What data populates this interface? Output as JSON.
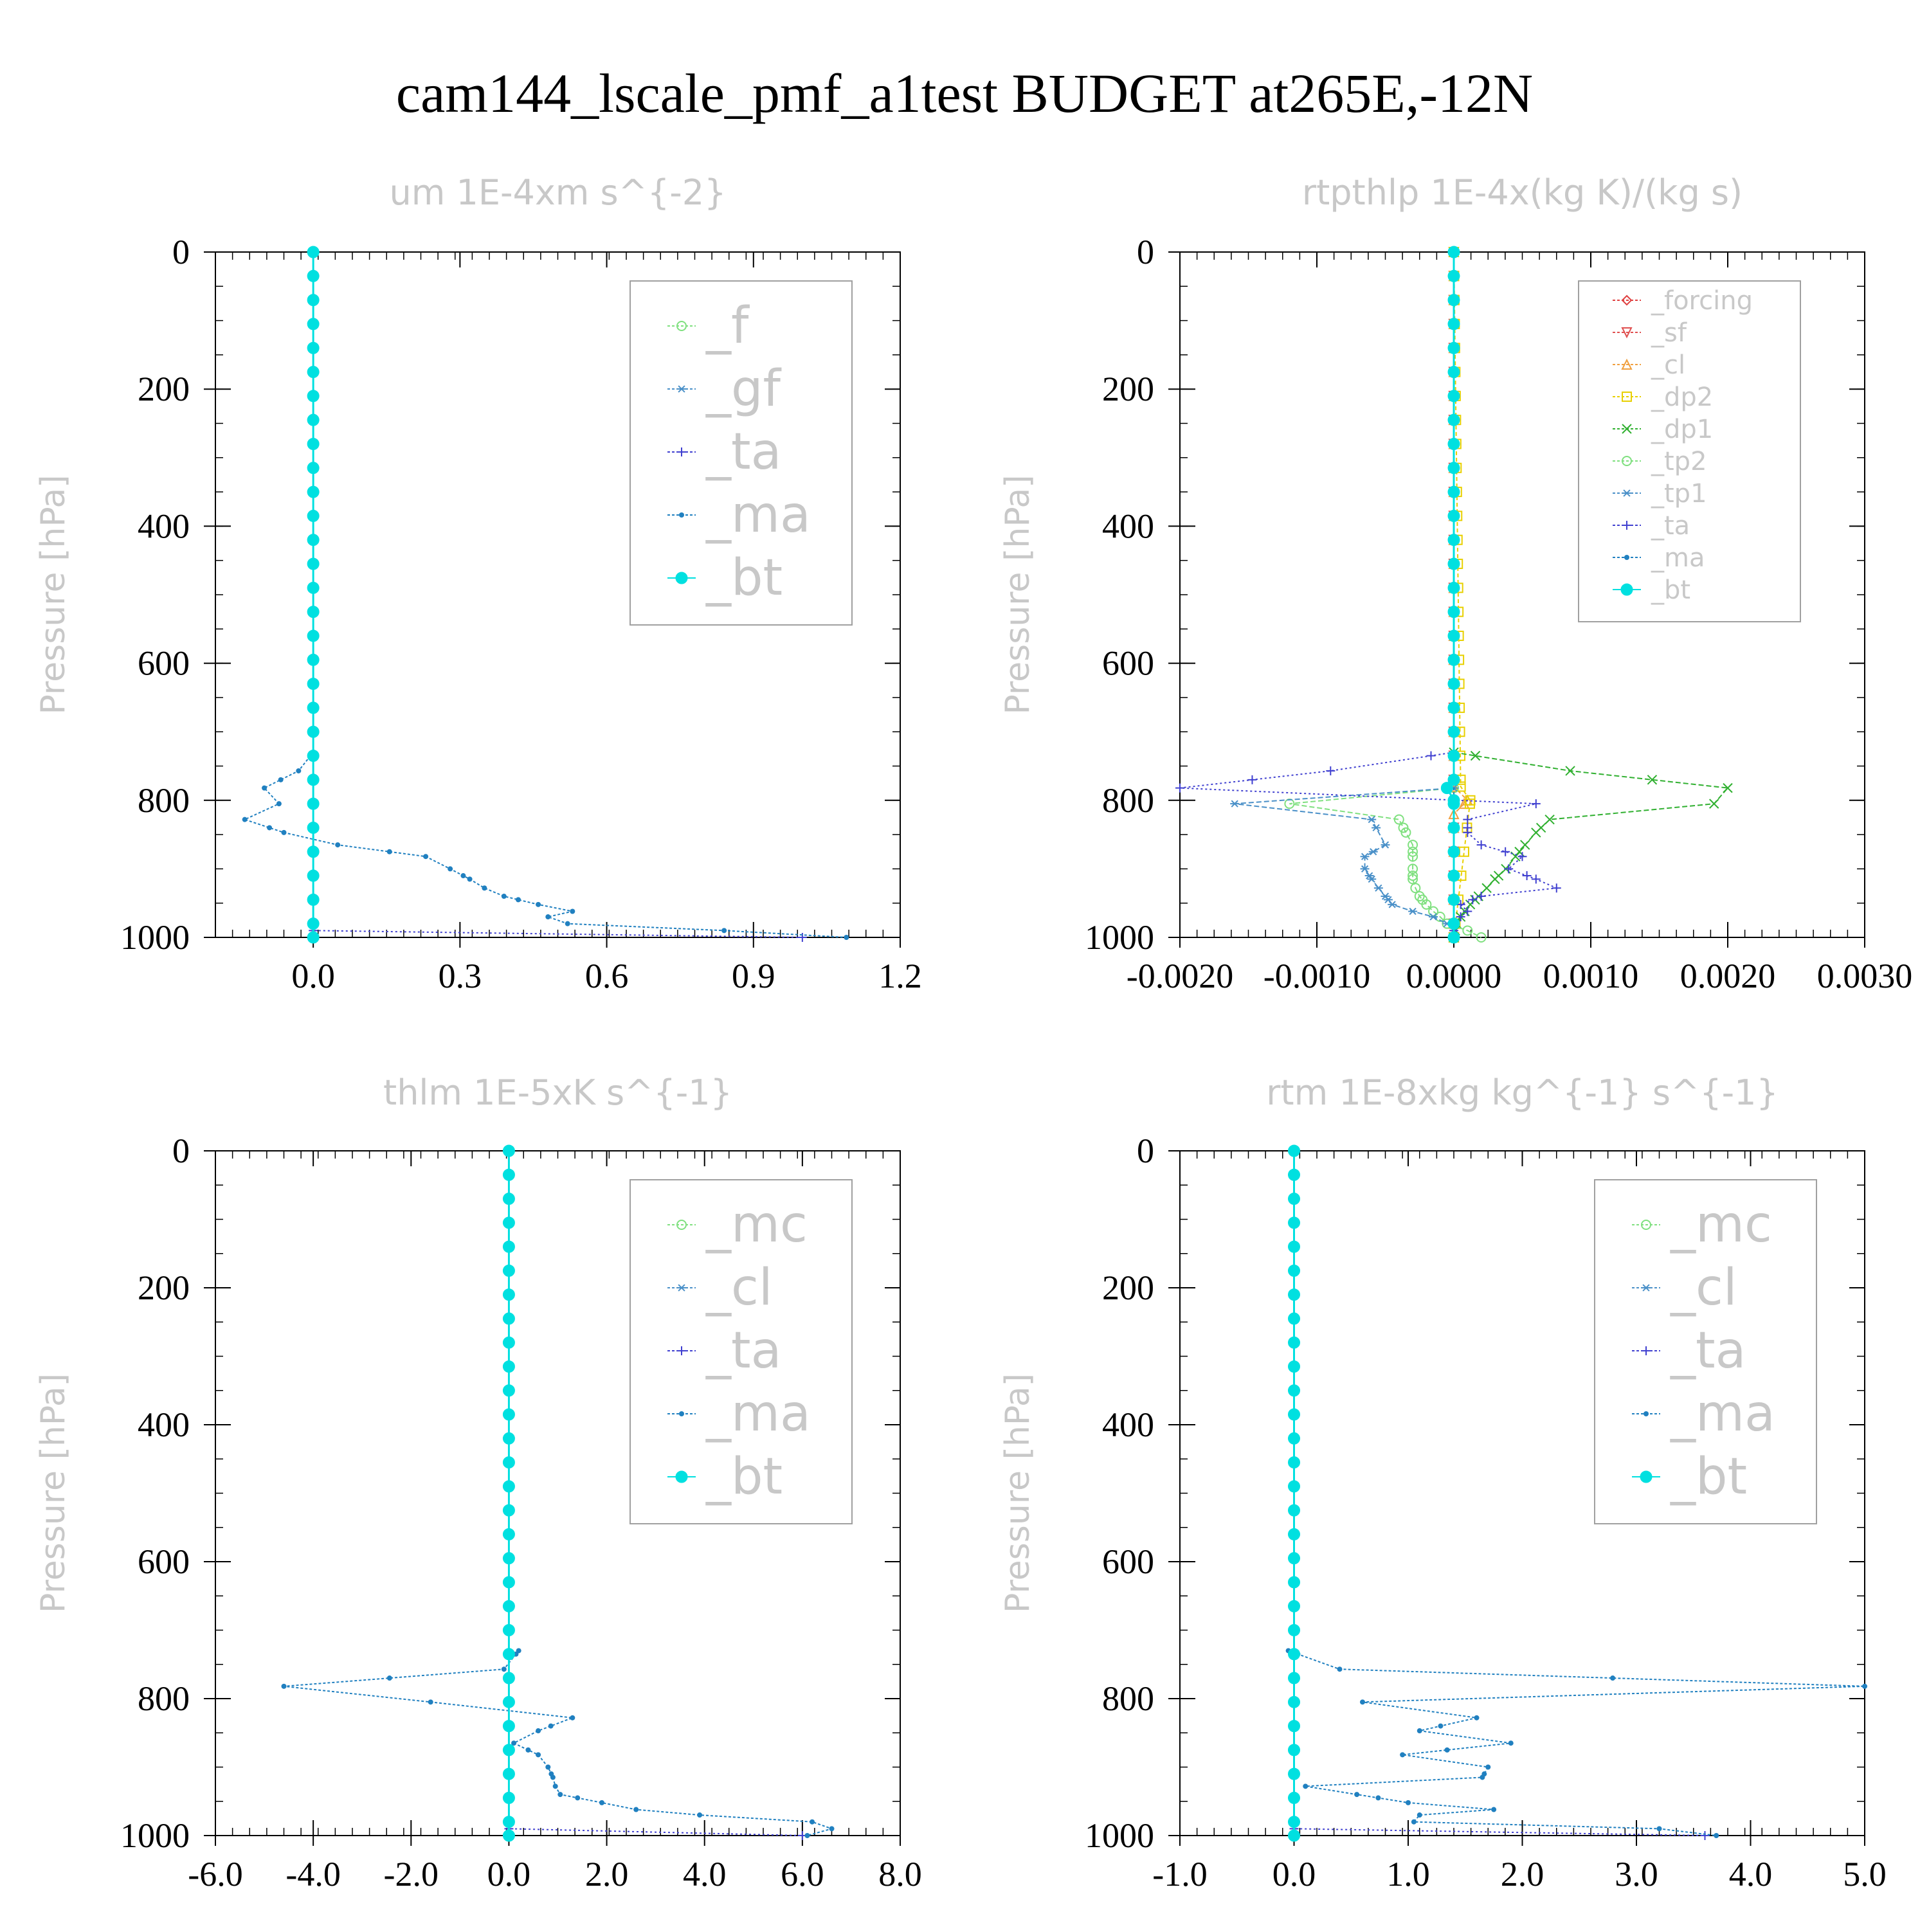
{
  "title": "cam144_lscale_pmf_a1test  BUDGET at265E,-12N",
  "chart_data": [
    {
      "type": "line",
      "title": "um   1E-4xm s^{-2}",
      "ylabel": "Pressure [hPa]",
      "ylim": [
        1000,
        0
      ],
      "xlim": [
        -0.2,
        1.2
      ],
      "xticks": [
        0.0,
        0.3,
        0.6,
        0.9,
        1.2
      ],
      "xtick_labels": [
        "0.0",
        "0.3",
        "0.6",
        "0.9",
        "1.2"
      ],
      "yticks": [
        0,
        200,
        400,
        600,
        800,
        1000
      ],
      "legend_size": "large",
      "legend_box": "upper-right",
      "series": [
        {
          "name": "_f",
          "color": "#7fe07f",
          "marker": "circle",
          "dash": "6 4",
          "y": [
            0,
            1000
          ],
          "values": [
            0,
            0
          ]
        },
        {
          "name": "_gf",
          "color": "#4a90c8",
          "marker": "star",
          "dash": "6 4",
          "y": [
            0,
            1000
          ],
          "values": [
            0,
            0
          ]
        },
        {
          "name": "_ta",
          "color": "#4040d0",
          "marker": "plus",
          "dash": "3 4",
          "y": [
            0,
            990,
            1000
          ],
          "values": [
            0,
            0,
            1.0
          ]
        },
        {
          "name": "_ma",
          "color": "#2080c0",
          "marker": "dot",
          "dash": "4 3",
          "y": [
            730,
            757,
            782,
            805,
            828,
            847,
            865,
            882,
            900,
            915,
            928,
            940,
            952,
            962,
            970,
            980,
            990,
            1000
          ],
          "values": [
            0,
            -0.03,
            -0.1,
            -0.07,
            -0.14,
            -0.06,
            0.05,
            0.23,
            0.28,
            0.32,
            0.35,
            0.39,
            0.46,
            0.53,
            0.48,
            0.52,
            0.84,
            1.09
          ]
        },
        {
          "name": "_bt",
          "color": "#00e0e0",
          "marker": "bigdot",
          "dash": "none",
          "y": [
            0,
            1000
          ],
          "values": [
            0,
            0
          ],
          "fill_profile": true
        }
      ]
    },
    {
      "type": "line",
      "title": "rtpthlp   1E-4x(kg K)/(kg s)",
      "ylabel": "Pressure [hPa]",
      "ylim": [
        1000,
        0
      ],
      "xlim": [
        -0.002,
        0.003
      ],
      "xticks": [
        -0.002,
        -0.001,
        0.0,
        0.001,
        0.002,
        0.003
      ],
      "xtick_labels": [
        "-0.0020",
        "-0.0010",
        "0.0000",
        "0.0010",
        "0.0020",
        "0.0030"
      ],
      "yticks": [
        0,
        200,
        400,
        600,
        800,
        1000
      ],
      "legend_size": "small",
      "legend_box": "upper-right",
      "series": [
        {
          "name": "_forcing",
          "color": "#e04040",
          "marker": "diamond",
          "dash": "6 4",
          "y": [
            0,
            1000
          ],
          "values": [
            0,
            0
          ]
        },
        {
          "name": "_sf",
          "color": "#e05050",
          "marker": "triangle-down",
          "dash": "6 4",
          "y": [
            0,
            1000
          ],
          "values": [
            0,
            0
          ]
        },
        {
          "name": "_cl",
          "color": "#f0a040",
          "marker": "triangle-up",
          "dash": "6 4",
          "y": [
            0,
            780,
            800,
            820,
            1000
          ],
          "values": [
            0,
            0,
            0.0001,
            0,
            0
          ]
        },
        {
          "name": "_dp2",
          "color": "#e8d000",
          "marker": "square",
          "dash": "6 4",
          "y": [
            0,
            780,
            800,
            1000
          ],
          "values": [
            0,
            5e-05,
            0.00012,
            0
          ]
        },
        {
          "name": "_dp1",
          "color": "#30b030",
          "marker": "cross",
          "dash": "8 4",
          "y": [
            730,
            757,
            782,
            805,
            828,
            847,
            865,
            882,
            900,
            915,
            928,
            940,
            952,
            962,
            970,
            980,
            990,
            1000
          ],
          "values": [
            0,
            0.00085,
            0.002,
            0.0019,
            0.0007,
            0.0006,
            0.00052,
            0.00045,
            0.00038,
            0.0003,
            0.00024,
            0.00018,
            0.00012,
            8e-05,
            5e-05,
            2e-05,
            1e-05,
            0
          ]
        },
        {
          "name": "_tp2",
          "color": "#7fe07f",
          "marker": "circle",
          "dash": "8 4",
          "y": [
            782,
            805,
            828,
            847,
            865,
            882,
            900,
            915,
            928,
            940,
            952,
            962,
            970,
            980,
            990,
            1000
          ],
          "values": [
            0,
            -0.0012,
            -0.0004,
            -0.00035,
            -0.0003,
            -0.0003,
            -0.0003,
            -0.0003,
            -0.00028,
            -0.00025,
            -0.0002,
            -0.00015,
            -0.0001,
            -5e-05,
            0.0001,
            0.0002
          ]
        },
        {
          "name": "_tp1",
          "color": "#4a90c8",
          "marker": "star",
          "dash": "8 4",
          "y": [
            782,
            805,
            828,
            865,
            882,
            900,
            915,
            928,
            940,
            952,
            962,
            970,
            980,
            990,
            1000
          ],
          "values": [
            0,
            -0.0016,
            -0.0006,
            -0.0005,
            -0.00065,
            -0.00065,
            -0.0006,
            -0.00055,
            -0.0005,
            -0.00045,
            -0.0003,
            -0.00015,
            -5e-05,
            0.0,
            0.0
          ]
        },
        {
          "name": "_ta",
          "color": "#4040d0",
          "marker": "plus",
          "dash": "3 4",
          "y": [
            730,
            757,
            782,
            805,
            828,
            847,
            865,
            882,
            900,
            915,
            928,
            940,
            952,
            962,
            970,
            980,
            990,
            1000
          ],
          "values": [
            0,
            -0.0009,
            -0.002,
            0.0006,
            0.0001,
            0.0001,
            0.0002,
            0.0005,
            0.0004,
            0.0006,
            0.00075,
            0.0002,
            5e-05,
            0.0001,
            5e-05,
            0.0,
            0.0,
            0.0
          ]
        },
        {
          "name": "_ma",
          "color": "#2080c0",
          "marker": "dot",
          "dash": "4 3",
          "y": [
            0,
            1000
          ],
          "values": [
            0,
            0
          ]
        },
        {
          "name": "_bt",
          "color": "#00e0e0",
          "marker": "bigdot",
          "dash": "none",
          "y": [
            0,
            770,
            782,
            800,
            1000
          ],
          "values": [
            0,
            0,
            -5e-05,
            0,
            0
          ],
          "fill_profile": true
        }
      ]
    },
    {
      "type": "line",
      "title": "thlm   1E-5xK s^{-1}",
      "ylabel": "Pressure [hPa]",
      "ylim": [
        1000,
        0
      ],
      "xlim": [
        -6.0,
        8.0
      ],
      "xticks": [
        -6.0,
        -4.0,
        -2.0,
        0.0,
        2.0,
        4.0,
        6.0,
        8.0
      ],
      "xtick_labels": [
        "-6.0",
        "-4.0",
        "-2.0",
        "0.0",
        "2.0",
        "4.0",
        "6.0",
        "8.0"
      ],
      "yticks": [
        0,
        200,
        400,
        600,
        800,
        1000
      ],
      "legend_size": "large",
      "legend_box": "upper-right",
      "series": [
        {
          "name": "_mc",
          "color": "#7fe07f",
          "marker": "circle",
          "dash": "6 4",
          "y": [
            0,
            1000
          ],
          "values": [
            0,
            0
          ]
        },
        {
          "name": "_cl",
          "color": "#4a90c8",
          "marker": "star",
          "dash": "6 4",
          "y": [
            0,
            1000
          ],
          "values": [
            0,
            0
          ]
        },
        {
          "name": "_ta",
          "color": "#4040d0",
          "marker": "plus",
          "dash": "3 4",
          "y": [
            0,
            990,
            1000
          ],
          "values": [
            0,
            0,
            6.0
          ]
        },
        {
          "name": "_ma",
          "color": "#2080c0",
          "marker": "dot",
          "dash": "4 3",
          "y": [
            730,
            757,
            782,
            805,
            828,
            847,
            865,
            882,
            900,
            915,
            928,
            940,
            952,
            962,
            970,
            980,
            990,
            1000
          ],
          "values": [
            0.2,
            -0.1,
            -4.6,
            -1.6,
            1.3,
            0.6,
            0.1,
            0.6,
            0.8,
            0.9,
            0.95,
            1.05,
            1.9,
            2.6,
            3.9,
            6.2,
            6.6,
            6.1
          ]
        },
        {
          "name": "_bt",
          "color": "#00e0e0",
          "marker": "bigdot",
          "dash": "none",
          "y": [
            0,
            1000
          ],
          "values": [
            0,
            0
          ],
          "fill_profile": true
        }
      ]
    },
    {
      "type": "line",
      "title": "rtm   1E-8xkg kg^{-1} s^{-1}",
      "ylabel": "Pressure [hPa]",
      "ylim": [
        1000,
        0
      ],
      "xlim": [
        -1.0,
        5.0
      ],
      "xticks": [
        -1.0,
        0.0,
        1.0,
        2.0,
        3.0,
        4.0,
        5.0
      ],
      "xtick_labels": [
        "-1.0",
        "0.0",
        "1.0",
        "2.0",
        "3.0",
        "4.0",
        "5.0"
      ],
      "yticks": [
        0,
        200,
        400,
        600,
        800,
        1000
      ],
      "legend_size": "large",
      "legend_box": "upper-right",
      "series": [
        {
          "name": "_mc",
          "color": "#7fe07f",
          "marker": "circle",
          "dash": "6 4",
          "y": [
            0,
            1000
          ],
          "values": [
            0,
            0
          ]
        },
        {
          "name": "_cl",
          "color": "#4a90c8",
          "marker": "star",
          "dash": "6 4",
          "y": [
            0,
            1000
          ],
          "values": [
            0,
            0
          ]
        },
        {
          "name": "_ta",
          "color": "#4040d0",
          "marker": "plus",
          "dash": "3 4",
          "y": [
            0,
            990,
            1000
          ],
          "values": [
            0,
            0,
            3.6
          ]
        },
        {
          "name": "_ma",
          "color": "#2080c0",
          "marker": "dot",
          "dash": "4 3",
          "y": [
            730,
            757,
            782,
            805,
            828,
            847,
            865,
            882,
            900,
            915,
            928,
            940,
            952,
            962,
            970,
            980,
            990,
            1000
          ],
          "values": [
            -0.05,
            0.4,
            5.0,
            0.6,
            1.6,
            1.1,
            1.9,
            0.95,
            1.7,
            1.65,
            0.1,
            0.55,
            1.0,
            1.75,
            1.1,
            1.05,
            3.2,
            3.7
          ]
        },
        {
          "name": "_bt",
          "color": "#00e0e0",
          "marker": "bigdot",
          "dash": "none",
          "y": [
            0,
            1000
          ],
          "values": [
            0,
            0
          ],
          "fill_profile": true
        }
      ]
    }
  ]
}
